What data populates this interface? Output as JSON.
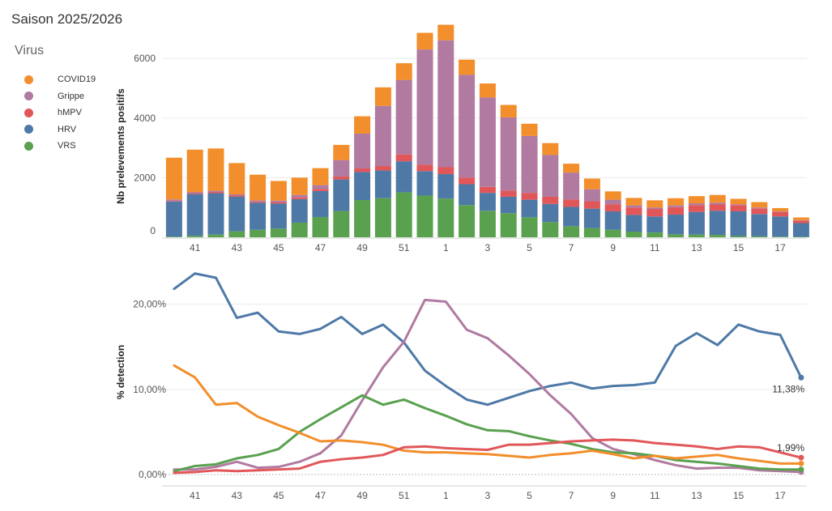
{
  "title": "Saison 2025/2026",
  "legend": {
    "title": "Virus",
    "items": [
      {
        "name": "COVID19",
        "color": "#f28e2b"
      },
      {
        "name": "Grippe",
        "color": "#b07aa1"
      },
      {
        "name": "hMPV",
        "color": "#e15759"
      },
      {
        "name": "HRV",
        "color": "#4e79a7"
      },
      {
        "name": "VRS",
        "color": "#59a14f"
      }
    ]
  },
  "chart_data": [
    {
      "type": "bar",
      "stacked": true,
      "ylabel": "Nb prelevements positifs",
      "xlabel": "",
      "ylim": [
        0,
        7200
      ],
      "yticks": [
        0,
        2000,
        4000,
        6000
      ],
      "ytick_labels": [
        "0",
        "2000",
        "4000",
        "6000"
      ],
      "categories": [
        "40",
        "41",
        "42",
        "43",
        "44",
        "45",
        "46",
        "47",
        "48",
        "49",
        "50",
        "51",
        "52",
        "1",
        "2",
        "3",
        "4",
        "5",
        "6",
        "7",
        "8",
        "9",
        "10",
        "11",
        "12",
        "13",
        "14",
        "15",
        "16",
        "17",
        "18"
      ],
      "xtick_labels": [
        "41",
        "43",
        "45",
        "47",
        "49",
        "51",
        "1",
        "3",
        "5",
        "7",
        "9",
        "11",
        "13",
        "15",
        "17"
      ],
      "series": [
        {
          "name": "VRS",
          "color": "#59a14f",
          "values": [
            20,
            50,
            90,
            200,
            250,
            290,
            490,
            680,
            880,
            1250,
            1310,
            1510,
            1400,
            1300,
            1080,
            890,
            810,
            670,
            510,
            370,
            310,
            250,
            190,
            160,
            100,
            90,
            80,
            40,
            30,
            20,
            15
          ]
        },
        {
          "name": "HRV",
          "color": "#4e79a7",
          "values": [
            1180,
            1400,
            1390,
            1160,
            910,
            840,
            790,
            870,
            1060,
            940,
            930,
            1040,
            820,
            820,
            700,
            600,
            550,
            590,
            610,
            650,
            650,
            620,
            560,
            540,
            660,
            760,
            810,
            830,
            750,
            680,
            460
          ]
        },
        {
          "name": "hMPV",
          "color": "#e15759",
          "values": [
            20,
            30,
            40,
            40,
            40,
            50,
            60,
            70,
            100,
            120,
            150,
            230,
            210,
            230,
            220,
            200,
            210,
            230,
            240,
            250,
            250,
            240,
            250,
            250,
            250,
            230,
            210,
            210,
            190,
            150,
            90
          ]
        },
        {
          "name": "Grippe",
          "color": "#b07aa1",
          "values": [
            50,
            40,
            40,
            40,
            40,
            50,
            80,
            130,
            550,
            1170,
            2020,
            2500,
            3870,
            4260,
            3450,
            3000,
            2450,
            1910,
            1400,
            900,
            400,
            150,
            70,
            50,
            60,
            60,
            60,
            30,
            30,
            20,
            10
          ]
        },
        {
          "name": "COVID19",
          "color": "#f28e2b",
          "values": [
            1400,
            1420,
            1420,
            1050,
            860,
            660,
            580,
            570,
            510,
            580,
            620,
            560,
            560,
            520,
            510,
            470,
            420,
            410,
            400,
            300,
            360,
            280,
            250,
            240,
            240,
            240,
            260,
            180,
            180,
            110,
            90
          ]
        }
      ]
    },
    {
      "type": "line",
      "ylabel": "% detection",
      "xlabel": "",
      "ylim": [
        0,
        25
      ],
      "yticks": [
        0,
        10,
        20
      ],
      "ytick_labels": [
        "0,00%",
        "10,00%",
        "20,00%"
      ],
      "categories": [
        "40",
        "41",
        "42",
        "43",
        "44",
        "45",
        "46",
        "47",
        "48",
        "49",
        "50",
        "51",
        "52",
        "1",
        "2",
        "3",
        "4",
        "5",
        "6",
        "7",
        "8",
        "9",
        "10",
        "11",
        "12",
        "13",
        "14",
        "15",
        "16",
        "17",
        "18"
      ],
      "xtick_labels": [
        "41",
        "43",
        "45",
        "47",
        "49",
        "51",
        "1",
        "3",
        "5",
        "7",
        "9",
        "11",
        "13",
        "15",
        "17"
      ],
      "series": [
        {
          "name": "HRV",
          "color": "#4e79a7",
          "values": [
            21.8,
            23.6,
            23.1,
            18.4,
            19.0,
            16.8,
            16.5,
            17.1,
            18.5,
            16.5,
            17.6,
            15.5,
            12.2,
            10.4,
            8.8,
            8.2,
            9.0,
            9.8,
            10.4,
            10.8,
            10.1,
            10.4,
            10.5,
            10.8,
            15.1,
            16.6,
            15.2,
            17.6,
            16.8,
            16.4,
            11.38
          ],
          "end_label": "11,38%"
        },
        {
          "name": "Grippe",
          "color": "#b07aa1",
          "values": [
            0.6,
            0.6,
            0.9,
            1.5,
            0.8,
            0.9,
            1.5,
            2.5,
            4.6,
            8.7,
            12.6,
            15.6,
            20.5,
            20.3,
            17.0,
            16.0,
            14.0,
            11.8,
            9.3,
            7.1,
            4.3,
            3.0,
            2.4,
            1.7,
            1.1,
            0.7,
            0.8,
            0.8,
            0.5,
            0.4,
            0.3
          ]
        },
        {
          "name": "VRS",
          "color": "#59a14f",
          "values": [
            0.4,
            1.0,
            1.2,
            1.9,
            2.3,
            3.0,
            5.0,
            6.5,
            7.9,
            9.3,
            8.2,
            8.8,
            7.8,
            6.9,
            5.9,
            5.2,
            5.1,
            4.5,
            4.0,
            3.6,
            3.0,
            2.6,
            2.5,
            2.2,
            1.7,
            1.5,
            1.3,
            1.0,
            0.7,
            0.6,
            0.6
          ]
        },
        {
          "name": "COVID19",
          "color": "#f28e2b",
          "values": [
            12.8,
            11.4,
            8.2,
            8.4,
            6.8,
            5.8,
            4.9,
            3.9,
            4.0,
            3.8,
            3.5,
            2.8,
            2.6,
            2.6,
            2.5,
            2.4,
            2.2,
            2.0,
            2.3,
            2.5,
            2.8,
            2.4,
            1.9,
            2.2,
            1.9,
            2.1,
            2.3,
            1.9,
            1.6,
            1.3,
            1.3
          ]
        },
        {
          "name": "hMPV",
          "color": "#e15759",
          "values": [
            0.2,
            0.3,
            0.5,
            0.4,
            0.5,
            0.6,
            0.7,
            1.5,
            1.8,
            2.0,
            2.3,
            3.2,
            3.3,
            3.1,
            3.0,
            2.9,
            3.5,
            3.5,
            3.7,
            3.9,
            4.0,
            4.1,
            4.0,
            3.7,
            3.5,
            3.3,
            3.0,
            3.3,
            3.2,
            2.6,
            1.99
          ],
          "end_label": "1,99%"
        }
      ]
    }
  ]
}
